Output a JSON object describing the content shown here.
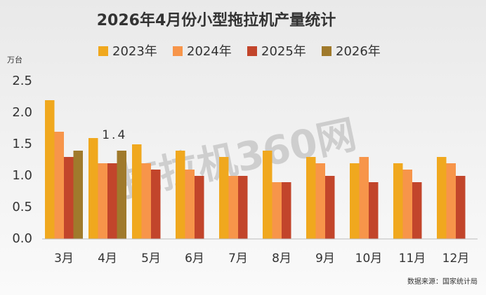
{
  "chart_data": {
    "type": "bar",
    "title": "2026年4月份小型拖拉机产量统计",
    "y_unit": "万台",
    "source": "数据来源：国家统计局",
    "watermark": "拖拉机360网",
    "categories": [
      "3月",
      "4月",
      "5月",
      "6月",
      "7月",
      "8月",
      "9月",
      "10月",
      "11月",
      "12月"
    ],
    "series": [
      {
        "name": "2023年",
        "color": "#f0a81e",
        "values": [
          2.2,
          1.6,
          1.5,
          1.4,
          1.3,
          1.4,
          1.3,
          1.2,
          1.2,
          1.3
        ]
      },
      {
        "name": "2024年",
        "color": "#f7954a",
        "values": [
          1.7,
          1.2,
          1.2,
          1.1,
          1.0,
          0.9,
          1.2,
          1.3,
          1.1,
          1.2
        ]
      },
      {
        "name": "2025年",
        "color": "#c2452b",
        "values": [
          1.3,
          1.2,
          1.1,
          1.0,
          1.0,
          0.9,
          1.0,
          0.9,
          0.9,
          1.0
        ]
      },
      {
        "name": "2026年",
        "color": "#a07a2c",
        "values": [
          1.4,
          1.4,
          null,
          null,
          null,
          null,
          null,
          null,
          null,
          null
        ],
        "value_labels": [
          null,
          "1.4",
          null,
          null,
          null,
          null,
          null,
          null,
          null,
          null
        ]
      }
    ],
    "ylim": [
      0,
      2.5
    ],
    "yticks": [
      {
        "value": 0,
        "label": "0.0"
      },
      0.5,
      {
        "value": 1,
        "label": "1.0"
      },
      1.5,
      {
        "value": 2,
        "label": "2.0"
      },
      2.5
    ],
    "grid": false,
    "legend": "top"
  }
}
